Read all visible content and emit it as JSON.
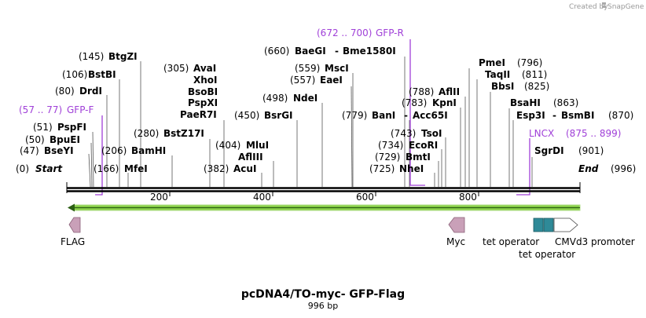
{
  "header": {
    "credit_text": "Created by",
    "brand": "SnapGene"
  },
  "map": {
    "title": "pcDNA4/TO-myc- GFP-Flag",
    "length_label": "996 bp",
    "bp_length": 996,
    "start_label": "Start",
    "start_pos": "(0)",
    "end_label": "End",
    "end_pos": "(996)",
    "ruler": [
      {
        "value": 200,
        "label": "200"
      },
      {
        "value": 400,
        "label": "400"
      },
      {
        "value": 600,
        "label": "600"
      },
      {
        "value": 800,
        "label": "800"
      }
    ]
  },
  "enzymes": [
    {
      "id": "bseyi",
      "name": "BseYI",
      "pos": "(47)"
    },
    {
      "id": "bpuei",
      "name": "BpuEI",
      "pos": "(50)"
    },
    {
      "id": "pspfi",
      "name": "PspFI",
      "pos": "(51)"
    },
    {
      "id": "drdi",
      "name": "DrdI",
      "pos": "(80)"
    },
    {
      "id": "bstbi",
      "name": "BstBI",
      "pos": "(106)"
    },
    {
      "id": "btgzi",
      "name": "BtgZI",
      "pos": "(145)"
    },
    {
      "id": "mfei",
      "name": "MfeI",
      "pos": "(166)"
    },
    {
      "id": "bamhi",
      "name": "BamHI",
      "pos": "(206)"
    },
    {
      "id": "bstz17i",
      "name": "BstZ17I",
      "pos": "(280)"
    },
    {
      "id": "paer7i",
      "name": "PaeR7I",
      "pos": ""
    },
    {
      "id": "pspxi",
      "name": "PspXI",
      "pos": ""
    },
    {
      "id": "bsobi",
      "name": "BsoBI",
      "pos": ""
    },
    {
      "id": "xhoi",
      "name": "XhoI",
      "pos": ""
    },
    {
      "id": "avai",
      "name": "AvaI",
      "pos": "(305)"
    },
    {
      "id": "acui",
      "name": "AcuI",
      "pos": "(382)"
    },
    {
      "id": "afliii",
      "name": "AflIII",
      "pos": ""
    },
    {
      "id": "mlui",
      "name": "MluI",
      "pos": "(404)"
    },
    {
      "id": "bsrgi",
      "name": "BsrGI",
      "pos": "(450)"
    },
    {
      "id": "ndei",
      "name": "NdeI",
      "pos": "(498)"
    },
    {
      "id": "eaei",
      "name": "EaeI",
      "pos": "(557)"
    },
    {
      "id": "msci",
      "name": "MscI",
      "pos": "(559)"
    },
    {
      "id": "baegi",
      "name": "BaeGI",
      "pos": "(660)"
    },
    {
      "id": "bme1580i",
      "name": "Bme1580I",
      "pos": ""
    },
    {
      "id": "bani",
      "name": "BanI",
      "pos": "(779)"
    },
    {
      "id": "acc65i",
      "name": "Acc65I",
      "pos": ""
    },
    {
      "id": "nhei",
      "name": "NheI",
      "pos": "(725)"
    },
    {
      "id": "bmti",
      "name": "BmtI",
      "pos": "(729)"
    },
    {
      "id": "ecori",
      "name": "EcoRI",
      "pos": "(734)"
    },
    {
      "id": "tsoi",
      "name": "TsoI",
      "pos": "(743)"
    },
    {
      "id": "kpni",
      "name": "KpnI",
      "pos": "(783)"
    },
    {
      "id": "aflii",
      "name": "AflII",
      "pos": "(788)"
    },
    {
      "id": "pmei",
      "name": "PmeI",
      "pos": "(796)"
    },
    {
      "id": "taqii",
      "name": "TaqII",
      "pos": "(811)"
    },
    {
      "id": "bbsi",
      "name": "BbsI",
      "pos": "(825)"
    },
    {
      "id": "bsahi",
      "name": "BsaHI",
      "pos": "(863)"
    },
    {
      "id": "esp3i",
      "name": "Esp3I",
      "pos": ""
    },
    {
      "id": "bsmbi",
      "name": "BsmBI",
      "pos": "(870)"
    },
    {
      "id": "sgrdi",
      "name": "SgrDI",
      "pos": "(901)"
    }
  ],
  "primers": [
    {
      "id": "gfp-f",
      "name": "GFP-F",
      "range": "(57 .. 77)"
    },
    {
      "id": "gfp-r",
      "name": "GFP-R",
      "range": "(672 .. 700)"
    },
    {
      "id": "lncx",
      "name": "LNCX",
      "range": "(875 .. 899)"
    }
  ],
  "features": [
    {
      "id": "flag",
      "name": "FLAG"
    },
    {
      "id": "myc",
      "name": "Myc"
    },
    {
      "id": "tetop1",
      "name": "tet operator"
    },
    {
      "id": "tetop2",
      "name": "tet operator"
    },
    {
      "id": "cmv",
      "name": "CMVd3 promoter"
    }
  ],
  "colors": {
    "primer": "#a040d8",
    "orf": "#8bd14a",
    "feature_pink": "#c9a0b8",
    "tet_operator": "#2f8a98",
    "backbone": "#000000"
  }
}
